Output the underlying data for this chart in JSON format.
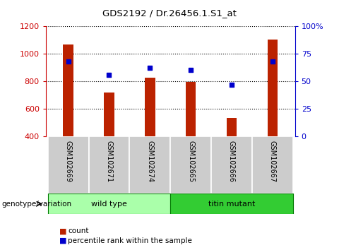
{
  "title": "GDS2192 / Dr.26456.1.S1_at",
  "samples": [
    "GSM102669",
    "GSM102671",
    "GSM102674",
    "GSM102665",
    "GSM102666",
    "GSM102667"
  ],
  "counts": [
    1065,
    720,
    825,
    795,
    535,
    1105
  ],
  "percentiles": [
    68,
    56,
    62,
    60,
    47,
    68
  ],
  "ylim_left": [
    400,
    1200
  ],
  "ylim_right": [
    0,
    100
  ],
  "yticks_left": [
    400,
    600,
    800,
    1000,
    1200
  ],
  "yticks_right": [
    0,
    25,
    50,
    75,
    100
  ],
  "bar_color": "#bb2200",
  "dot_color": "#0000cc",
  "groups": [
    {
      "label": "wild type",
      "indices": [
        0,
        1,
        2
      ],
      "color": "#aaffaa"
    },
    {
      "label": "titin mutant",
      "indices": [
        3,
        4,
        5
      ],
      "color": "#33cc33"
    }
  ],
  "genotype_label": "genotype/variation",
  "legend_count_label": "count",
  "legend_pct_label": "percentile rank within the sample",
  "bg_color": "#ffffff",
  "plot_bg": "#ffffff",
  "label_color_left": "#cc0000",
  "label_color_right": "#0000cc",
  "xticklabel_bg": "#cccccc",
  "bar_width": 0.25
}
